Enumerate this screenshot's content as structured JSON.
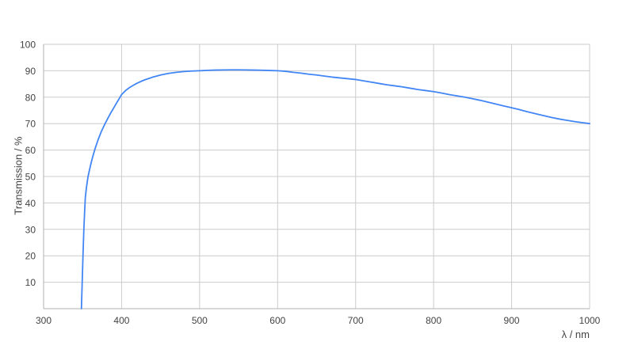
{
  "chart_data": {
    "type": "line",
    "title": "",
    "xlabel": "λ / nm",
    "ylabel": "Transmission / %",
    "xlim": [
      300,
      1000
    ],
    "ylim": [
      0,
      100
    ],
    "x_ticks": [
      300,
      400,
      500,
      600,
      700,
      800,
      900,
      1000
    ],
    "y_ticks": [
      10,
      20,
      30,
      40,
      50,
      60,
      70,
      80,
      90,
      100
    ],
    "grid": true,
    "legend_position": "none",
    "background_color": "#ffffff",
    "gridline_color": "#cccccc",
    "axis_line_color": "#b0b0b0",
    "tick_label_color": "#444444",
    "series": [
      {
        "name": "Transmission",
        "color": "#4285f4",
        "points": [
          [
            348.5,
            0
          ],
          [
            349.5,
            10
          ],
          [
            350.5,
            20
          ],
          [
            351.5,
            29
          ],
          [
            352.5,
            36
          ],
          [
            353.5,
            42
          ],
          [
            355,
            46
          ],
          [
            357,
            50
          ],
          [
            360,
            54
          ],
          [
            363,
            57.5
          ],
          [
            366,
            60.5
          ],
          [
            370,
            64
          ],
          [
            374,
            67
          ],
          [
            378,
            69.5
          ],
          [
            382,
            71.8
          ],
          [
            386,
            74
          ],
          [
            390,
            76
          ],
          [
            394,
            78
          ],
          [
            398,
            80
          ],
          [
            400,
            81
          ],
          [
            405,
            82.5
          ],
          [
            410,
            83.6
          ],
          [
            415,
            84.5
          ],
          [
            420,
            85.3
          ],
          [
            425,
            86
          ],
          [
            430,
            86.6
          ],
          [
            435,
            87.1
          ],
          [
            440,
            87.6
          ],
          [
            445,
            88
          ],
          [
            450,
            88.4
          ],
          [
            455,
            88.7
          ],
          [
            460,
            89
          ],
          [
            470,
            89.4
          ],
          [
            480,
            89.7
          ],
          [
            490,
            89.9
          ],
          [
            500,
            90
          ],
          [
            510,
            90.15
          ],
          [
            520,
            90.25
          ],
          [
            530,
            90.3
          ],
          [
            540,
            90.35
          ],
          [
            550,
            90.35
          ],
          [
            560,
            90.3
          ],
          [
            570,
            90.25
          ],
          [
            580,
            90.2
          ],
          [
            590,
            90.1
          ],
          [
            600,
            90
          ],
          [
            610,
            89.8
          ],
          [
            620,
            89.4
          ],
          [
            630,
            89.1
          ],
          [
            640,
            88.7
          ],
          [
            650,
            88.4
          ],
          [
            660,
            88
          ],
          [
            670,
            87.6
          ],
          [
            680,
            87.3
          ],
          [
            690,
            87
          ],
          [
            700,
            86.7
          ],
          [
            710,
            86.2
          ],
          [
            720,
            85.7
          ],
          [
            730,
            85.2
          ],
          [
            740,
            84.7
          ],
          [
            750,
            84.3
          ],
          [
            760,
            83.9
          ],
          [
            770,
            83.4
          ],
          [
            780,
            82.9
          ],
          [
            790,
            82.5
          ],
          [
            800,
            82.1
          ],
          [
            810,
            81.6
          ],
          [
            820,
            81
          ],
          [
            830,
            80.5
          ],
          [
            840,
            80
          ],
          [
            850,
            79.4
          ],
          [
            860,
            78.8
          ],
          [
            870,
            78.1
          ],
          [
            880,
            77.4
          ],
          [
            890,
            76.7
          ],
          [
            900,
            76
          ],
          [
            910,
            75.3
          ],
          [
            920,
            74.5
          ],
          [
            930,
            73.8
          ],
          [
            940,
            73.1
          ],
          [
            950,
            72.4
          ],
          [
            960,
            71.8
          ],
          [
            970,
            71.3
          ],
          [
            980,
            70.8
          ],
          [
            990,
            70.4
          ],
          [
            1000,
            70
          ]
        ]
      }
    ]
  }
}
